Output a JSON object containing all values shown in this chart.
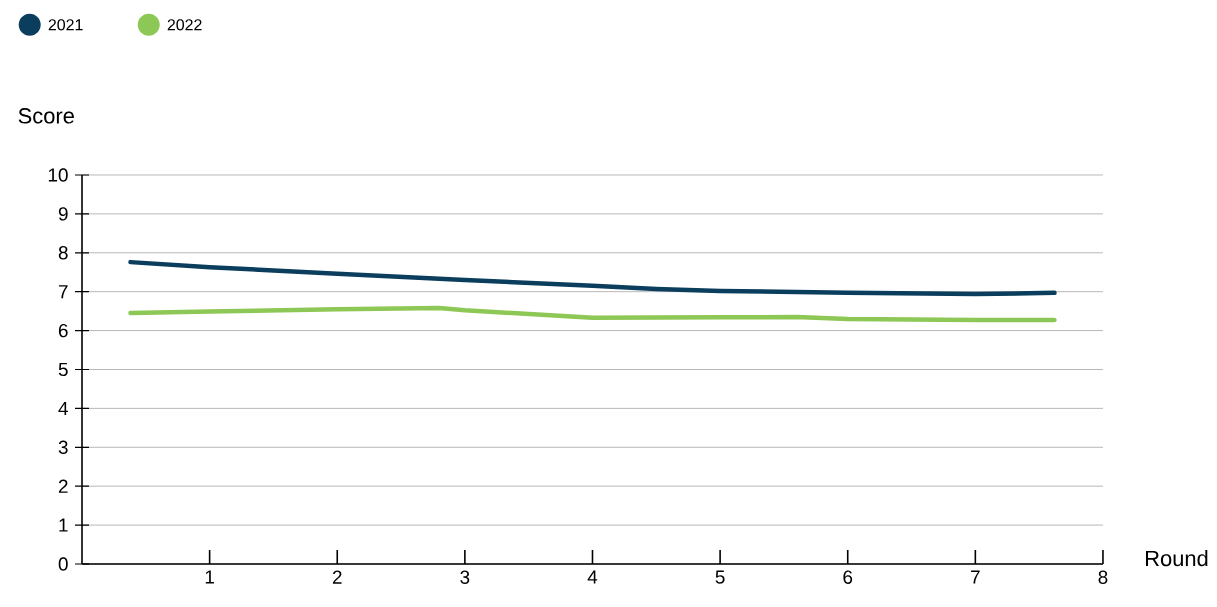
{
  "chart_data": {
    "type": "line",
    "xlabel": "Round",
    "ylabel": "Score",
    "xlim": [
      0,
      8
    ],
    "xticks": [
      1,
      2,
      3,
      4,
      5,
      6,
      7,
      8
    ],
    "ylim": [
      0,
      10
    ],
    "yticks": [
      0,
      1,
      2,
      3,
      4,
      5,
      6,
      7,
      8,
      9,
      10
    ],
    "grid": "y",
    "legend": "top left",
    "marker": "none",
    "line_style": "solid",
    "series": [
      {
        "name": "2021",
        "color": "#0b3d5c",
        "x": [
          0.38,
          1,
          2,
          3,
          4,
          4.5,
          5,
          6,
          7,
          7.62
        ],
        "values": [
          7.76,
          7.63,
          7.46,
          7.3,
          7.15,
          7.07,
          7.02,
          6.97,
          6.94,
          6.97
        ]
      },
      {
        "name": "2022",
        "color": "#8dc755",
        "x": [
          0.38,
          1,
          2,
          2.8,
          3,
          4,
          5,
          5.6,
          6,
          7,
          7.62
        ],
        "values": [
          6.45,
          6.49,
          6.55,
          6.58,
          6.52,
          6.33,
          6.34,
          6.35,
          6.3,
          6.27,
          6.27
        ]
      }
    ]
  }
}
